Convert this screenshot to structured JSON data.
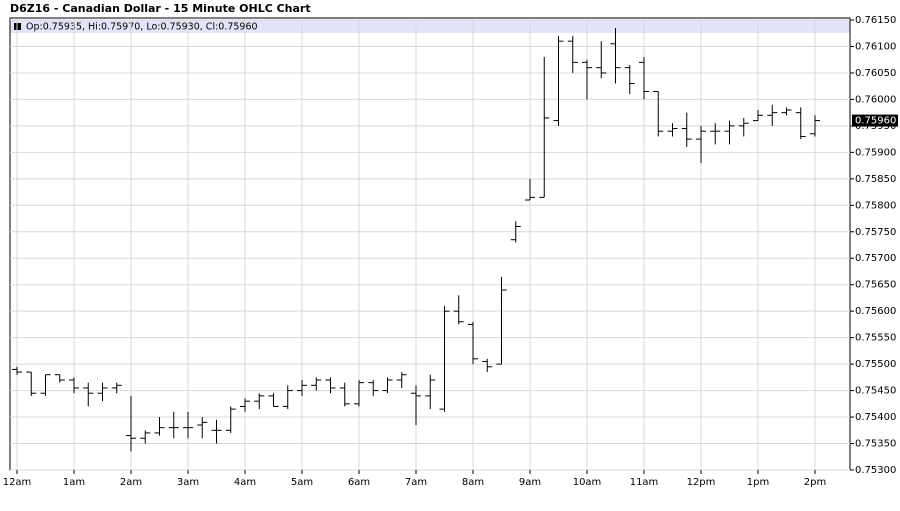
{
  "chart_data": {
    "type": "ohlc",
    "title": "D6Z16 - Canadian Dollar - 15 Minute OHLC Chart",
    "legend": "Op:0.75935, Hi:0.75970, Lo:0.75930, Cl:0.75960",
    "last_label": "0.75960",
    "color": "#000000",
    "grid": true,
    "categories": [
      "12am",
      null,
      null,
      null,
      "1am",
      null,
      null,
      null,
      "2am",
      null,
      null,
      null,
      "3am",
      null,
      null,
      null,
      "4am",
      null,
      null,
      null,
      "5am",
      null,
      null,
      null,
      "6am",
      null,
      null,
      null,
      "7am",
      null,
      null,
      null,
      "8am",
      null,
      null,
      null,
      "9am",
      null,
      null,
      null,
      "10am",
      null,
      null,
      null,
      "11am",
      null,
      null,
      null,
      "12pm",
      null,
      null,
      null,
      "1pm",
      null,
      null,
      null,
      "2pm"
    ],
    "open": [
      0.7549,
      0.75485,
      0.75445,
      0.7548,
      0.7547,
      0.75455,
      0.75445,
      0.75455,
      0.75365,
      0.7536,
      0.7537,
      0.7538,
      0.7538,
      0.75385,
      0.75375,
      0.75375,
      0.7542,
      0.7543,
      0.7544,
      0.7542,
      0.7545,
      0.7546,
      0.7547,
      0.75455,
      0.75425,
      0.75465,
      0.7545,
      0.7547,
      0.75445,
      0.7544,
      0.75415,
      0.756,
      0.75575,
      0.75505,
      0.755,
      0.75735,
      0.7581,
      0.75815,
      0.7596,
      0.7611,
      0.7607,
      0.7606,
      0.76105,
      0.7606,
      0.7607,
      0.76015,
      0.7594,
      0.75945,
      0.75925,
      0.7594,
      0.7594,
      0.7595,
      0.7596,
      0.7597,
      0.75975,
      0.75975,
      0.75935
    ],
    "high": [
      0.75495,
      0.75485,
      0.7548,
      0.7548,
      0.75475,
      0.75465,
      0.75465,
      0.75465,
      0.7544,
      0.75375,
      0.754,
      0.7541,
      0.7541,
      0.754,
      0.75395,
      0.7542,
      0.75435,
      0.75445,
      0.75445,
      0.7546,
      0.7547,
      0.75475,
      0.75475,
      0.75465,
      0.7547,
      0.7547,
      0.75475,
      0.75485,
      0.7546,
      0.7548,
      0.7561,
      0.7563,
      0.7558,
      0.7551,
      0.75665,
      0.7577,
      0.7585,
      0.7608,
      0.7612,
      0.7612,
      0.76075,
      0.7611,
      0.76135,
      0.76065,
      0.7608,
      0.76015,
      0.75955,
      0.75975,
      0.7595,
      0.75955,
      0.7596,
      0.75965,
      0.7598,
      0.7599,
      0.75985,
      0.75985,
      0.7597
    ],
    "low": [
      0.7548,
      0.7544,
      0.7544,
      0.75465,
      0.75445,
      0.7542,
      0.7543,
      0.75445,
      0.75335,
      0.7535,
      0.75365,
      0.7536,
      0.7536,
      0.7536,
      0.7535,
      0.7537,
      0.7541,
      0.75415,
      0.7542,
      0.75415,
      0.7544,
      0.7545,
      0.75445,
      0.7542,
      0.7542,
      0.7544,
      0.75445,
      0.75455,
      0.75385,
      0.75415,
      0.7541,
      0.75575,
      0.755,
      0.75485,
      0.755,
      0.7573,
      0.7581,
      0.75815,
      0.7595,
      0.7605,
      0.76,
      0.7604,
      0.7603,
      0.7601,
      0.76,
      0.7593,
      0.7593,
      0.7591,
      0.7588,
      0.75915,
      0.75915,
      0.7593,
      0.7596,
      0.7595,
      0.7597,
      0.75925,
      0.7593
    ],
    "close": [
      0.75485,
      0.75445,
      0.7548,
      0.7547,
      0.75455,
      0.75445,
      0.75455,
      0.7546,
      0.7536,
      0.7537,
      0.7538,
      0.7538,
      0.7538,
      0.7539,
      0.75375,
      0.75415,
      0.7543,
      0.7544,
      0.7542,
      0.7545,
      0.7546,
      0.7547,
      0.75455,
      0.75425,
      0.75465,
      0.7545,
      0.7547,
      0.7548,
      0.7544,
      0.7547,
      0.756,
      0.7558,
      0.7551,
      0.75495,
      0.7564,
      0.7576,
      0.75815,
      0.75965,
      0.7611,
      0.7607,
      0.7606,
      0.7605,
      0.7606,
      0.7603,
      0.76015,
      0.7594,
      0.75945,
      0.75925,
      0.7594,
      0.7594,
      0.7595,
      0.75955,
      0.7597,
      0.75975,
      0.7598,
      0.7593,
      0.7596
    ],
    "ylim": [
      0.753,
      0.7615
    ],
    "yticks": [
      {
        "value": 0.753,
        "label": "0.75300"
      },
      {
        "value": 0.7535,
        "label": "0.75350"
      },
      {
        "value": 0.754,
        "label": "0.75400"
      },
      {
        "value": 0.7545,
        "label": "0.75450"
      },
      {
        "value": 0.755,
        "label": "0.75500"
      },
      {
        "value": 0.7555,
        "label": "0.75550"
      },
      {
        "value": 0.756,
        "label": "0.75600"
      },
      {
        "value": 0.7565,
        "label": "0.75650"
      },
      {
        "value": 0.757,
        "label": "0.75700"
      },
      {
        "value": 0.7575,
        "label": "0.75750"
      },
      {
        "value": 0.758,
        "label": "0.75800"
      },
      {
        "value": 0.7585,
        "label": "0.75850"
      },
      {
        "value": 0.759,
        "label": "0.75900"
      },
      {
        "value": 0.7595,
        "label": "0.75950"
      },
      {
        "value": 0.76,
        "label": "0.76000"
      },
      {
        "value": 0.7605,
        "label": "0.76050"
      },
      {
        "value": 0.761,
        "label": "0.76100"
      },
      {
        "value": 0.7615,
        "label": "0.76150"
      }
    ]
  }
}
